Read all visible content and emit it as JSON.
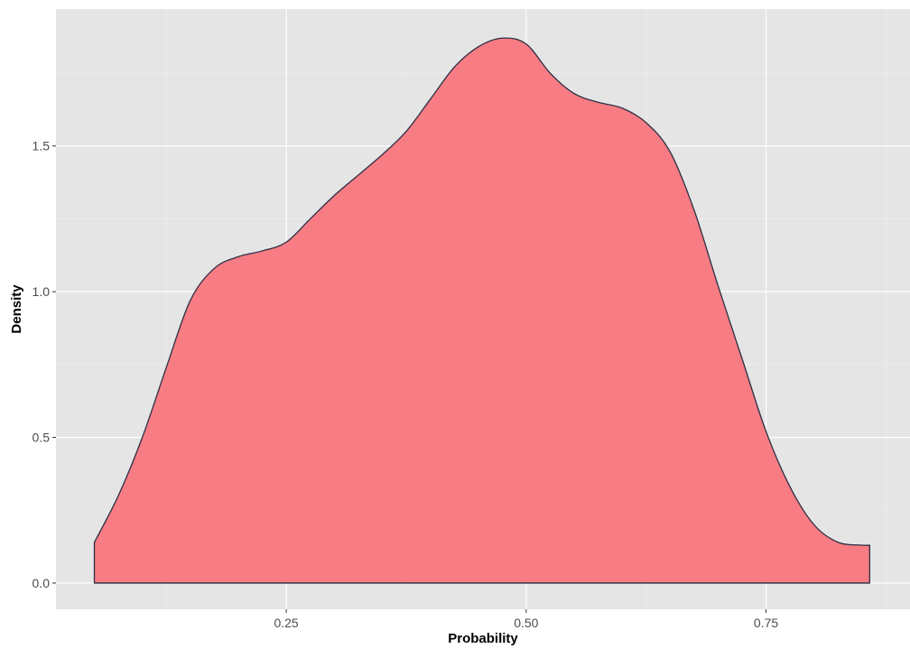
{
  "chart_data": {
    "type": "area",
    "subtype": "density",
    "title": "",
    "xlabel": "Probability",
    "ylabel": "Density",
    "xlim": [
      0.01,
      0.9
    ],
    "ylim": [
      -0.09,
      1.97
    ],
    "x_ticks": [
      {
        "value": 0.25,
        "label": "0.25"
      },
      {
        "value": 0.5,
        "label": "0.50"
      },
      {
        "value": 0.75,
        "label": "0.75"
      }
    ],
    "y_ticks": [
      {
        "value": 0.0,
        "label": "0.0"
      },
      {
        "value": 0.5,
        "label": "0.5"
      },
      {
        "value": 1.0,
        "label": "1.0"
      },
      {
        "value": 1.5,
        "label": "1.5"
      }
    ],
    "grid": true,
    "legend": "none",
    "colors": {
      "fill": "#f8767d",
      "fill_opacity": 0.95,
      "outline": "#2b2f45",
      "panel": "#e5e5e5",
      "grid_major": "#ffffff",
      "grid_minor": "#f0f0f0"
    },
    "series": [
      {
        "x": [
          0.05,
          0.075,
          0.1,
          0.125,
          0.15,
          0.175,
          0.2,
          0.225,
          0.25,
          0.275,
          0.3,
          0.325,
          0.35,
          0.375,
          0.4,
          0.425,
          0.45,
          0.475,
          0.5,
          0.525,
          0.55,
          0.575,
          0.6,
          0.625,
          0.65,
          0.675,
          0.7,
          0.725,
          0.75,
          0.775,
          0.8,
          0.825,
          0.85,
          0.858
        ],
        "y": [
          0.14,
          0.3,
          0.5,
          0.74,
          0.97,
          1.08,
          1.12,
          1.14,
          1.17,
          1.25,
          1.33,
          1.4,
          1.47,
          1.55,
          1.66,
          1.77,
          1.84,
          1.87,
          1.85,
          1.75,
          1.68,
          1.65,
          1.63,
          1.58,
          1.48,
          1.28,
          1.02,
          0.77,
          0.52,
          0.33,
          0.2,
          0.14,
          0.13,
          0.13
        ]
      }
    ]
  }
}
